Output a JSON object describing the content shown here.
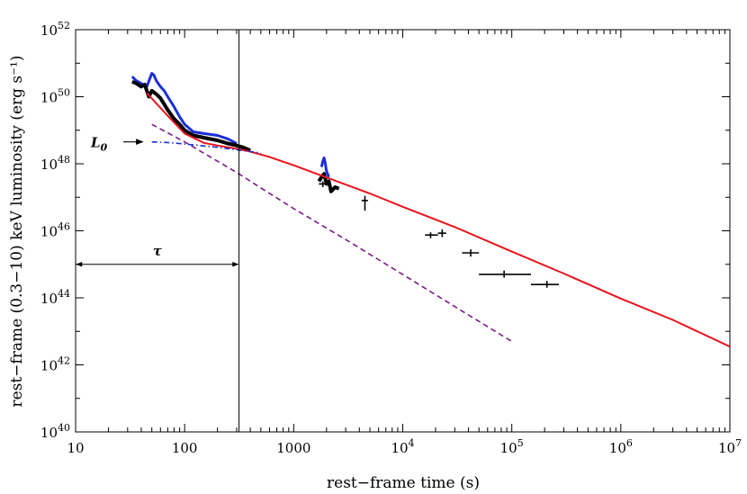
{
  "chart_data": {
    "type": "line",
    "title": "",
    "xlabel": "rest−frame  time  (s)",
    "ylabel": "rest−frame  (0.3−10) keV luminosity  (erg s⁻¹)",
    "xscale": "log",
    "yscale": "log",
    "xlim": [
      10,
      10000000
    ],
    "ylim": [
      1e+40,
      1e+52
    ],
    "grid": false,
    "legend": "none",
    "x_ticks": [
      {
        "value": 10,
        "label": "10"
      },
      {
        "value": 100,
        "label": "100"
      },
      {
        "value": 1000,
        "label": "1000"
      },
      {
        "value": 10000,
        "base": "10",
        "exp": "4"
      },
      {
        "value": 100000,
        "base": "10",
        "exp": "5"
      },
      {
        "value": 1000000,
        "base": "10",
        "exp": "6"
      },
      {
        "value": 10000000,
        "base": "10",
        "exp": "7"
      }
    ],
    "y_ticks": [
      {
        "value": 1e+40,
        "base": "10",
        "exp": "40"
      },
      {
        "value": 1e+42,
        "base": "10",
        "exp": "42"
      },
      {
        "value": 1e+44,
        "base": "10",
        "exp": "44"
      },
      {
        "value": 1e+46,
        "base": "10",
        "exp": "46"
      },
      {
        "value": 1e+48,
        "base": "10",
        "exp": "48"
      },
      {
        "value": 1e+50,
        "base": "10",
        "exp": "50"
      },
      {
        "value": 1e+52,
        "base": "10",
        "exp": "52"
      }
    ],
    "series": [
      {
        "style": "solid",
        "color": "#e8141c",
        "x": [
          45,
          70,
          100,
          150,
          200,
          300,
          400,
          600,
          1000,
          2000,
          5000,
          10000,
          30000,
          100000,
          300000,
          1000000,
          3000000,
          10000000
        ],
        "y": [
          1.3e+50,
          2.7e+49,
          8e+48,
          4.2e+48,
          3.5e+48,
          2.8e+48,
          2.3e+48,
          1.6e+48,
          9e+47,
          3.9e+47,
          1.3e+47,
          5.2e+46,
          1.3e+46,
          2.4e+45,
          5.3e+44,
          9.5e+43,
          2.2e+43,
          3.5e+42
        ]
      },
      {
        "style": "dashed",
        "color": "#7b1a8a",
        "x": [
          50,
          100,
          200,
          315,
          500,
          1000,
          3000,
          10000,
          30000,
          100000
        ],
        "y": [
          1.5e+49,
          4.5e+48,
          1.2e+48,
          5e+47,
          1.9e+47,
          4.6e+46,
          5.5e+45,
          5e+44,
          5.5e+43,
          5e+42
        ]
      },
      {
        "style": "dashdot",
        "color": "#1a2fd6",
        "x": [
          50,
          70,
          100,
          150,
          200,
          300,
          400,
          500
        ],
        "y": [
          4.5e+48,
          4.3e+48,
          3.9e+48,
          3.4e+48,
          3.1e+48,
          2.6e+48,
          2.3e+48,
          2.1e+48
        ]
      }
    ],
    "data_curve_black": {
      "color": "#000000",
      "x": [
        33,
        36,
        40,
        43,
        47,
        50,
        55,
        60,
        65,
        70,
        80,
        90,
        100,
        120,
        150,
        200,
        250,
        300,
        350,
        400
      ],
      "y": [
        2.8e+50,
        2.5e+50,
        2e+50,
        2.3e+50,
        1e+50,
        1.5e+50,
        1.2e+50,
        9e+49,
        6e+49,
        4e+49,
        2.2e+49,
        1.5e+49,
        1e+49,
        7e+48,
        6e+48,
        5e+48,
        4e+48,
        3.5e+48,
        3e+48,
        2.5e+48
      ]
    },
    "data_curve_blue": {
      "color": "#1a2fd6",
      "x": [
        33,
        36,
        40,
        45,
        50,
        52,
        55,
        60,
        65,
        70,
        80,
        90,
        100,
        120,
        150,
        200,
        250,
        300
      ],
      "y": [
        4e+50,
        3e+50,
        2.5e+50,
        2e+50,
        5e+50,
        4.5e+50,
        3e+50,
        2e+50,
        1.5e+50,
        1e+50,
        5e+49,
        2.5e+49,
        1.5e+49,
        9e+48,
        8e+48,
        7e+48,
        5.5e+48,
        4e+48
      ]
    },
    "flare_black": {
      "x": [
        1700,
        1800,
        1900,
        2000,
        2100,
        2200,
        2400,
        2600
      ],
      "y": [
        3e+47,
        4e+47,
        5e+47,
        2.5e+47,
        3e+47,
        1.5e+47,
        2e+47,
        1.8e+47
      ]
    },
    "flare_blue": {
      "x": [
        1800,
        1850,
        1900,
        1950,
        2000,
        2100
      ],
      "y": [
        8e+47,
        1.2e+48,
        1.5e+48,
        1e+48,
        6e+47,
        4e+47
      ]
    },
    "data_points": [
      {
        "x": 1850,
        "y": 2.5e+47,
        "xerr": [
          1700,
          2000
        ],
        "yerr": [
          2e+47,
          3e+47
        ]
      },
      {
        "x": 4500,
        "y": 8e+46,
        "xerr": [
          4200,
          4800
        ],
        "yerr": [
          4e+46,
          1.1e+47
        ]
      },
      {
        "x": 18000,
        "y": 7.5e+45,
        "xerr": [
          16000,
          21000
        ],
        "yerr": [
          6e+45,
          9e+45
        ]
      },
      {
        "x": 23000,
        "y": 8.5e+45,
        "xerr": [
          21000,
          25000
        ],
        "yerr": [
          6.5e+45,
          1.1e+46
        ]
      },
      {
        "x": 42000,
        "y": 2.2e+45,
        "xerr": [
          35000,
          50000
        ],
        "yerr": [
          1.7e+45,
          2.8e+45
        ]
      },
      {
        "x": 85000,
        "y": 5e+44,
        "xerr": [
          50000,
          150000
        ],
        "yerr": [
          4e+44,
          6.5e+44
        ]
      },
      {
        "x": 210000,
        "y": 2.5e+44,
        "xerr": [
          150000,
          270000
        ],
        "yerr": [
          2e+44,
          3.2e+44
        ]
      }
    ],
    "annotations": [
      {
        "label_base": "L",
        "label_sub": "0",
        "arrow_to_x": 50,
        "arrow_to_y": 4.5e+48
      },
      {
        "label": "τ",
        "span_x": [
          10,
          315
        ],
        "at_y": 1e+45
      },
      {
        "vertical_line_x": 315
      }
    ]
  }
}
